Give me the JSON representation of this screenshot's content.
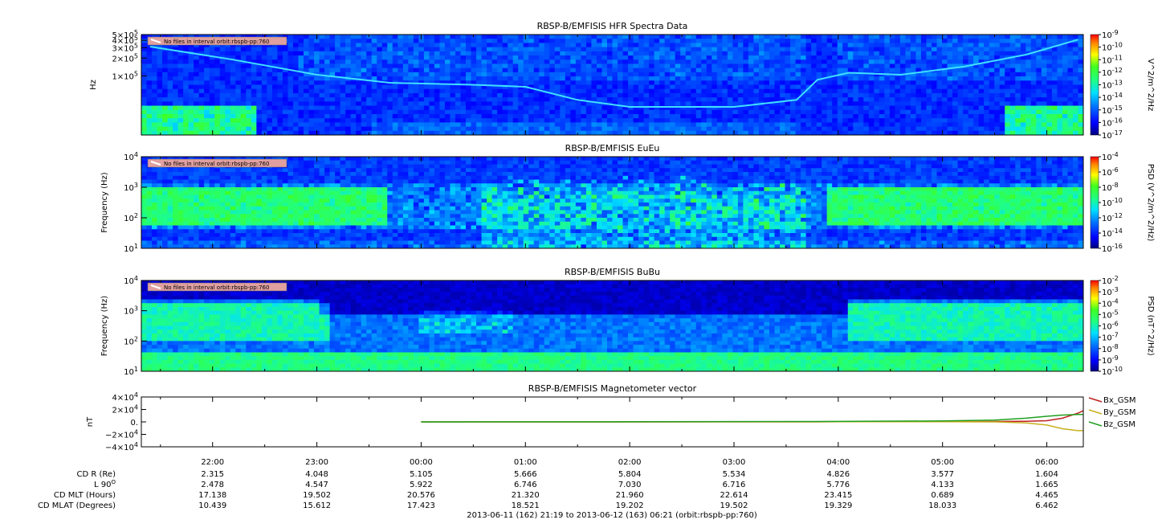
{
  "chart_data": [
    {
      "type": "heatmap",
      "title": "RBSP-B/EMFISIS  HFR Spectra Data",
      "ylabel": "Hz",
      "yscale": "log",
      "ylim": [
        10000,
        500000
      ],
      "y_ticks": [
        {
          "value": 500000,
          "m": "5",
          "e": "5"
        },
        {
          "value": 400000,
          "m": "4",
          "e": "5"
        },
        {
          "value": 300000,
          "m": "3",
          "e": "5"
        },
        {
          "value": 200000,
          "m": "2",
          "e": "5"
        },
        {
          "value": 100000,
          "m": "1",
          "e": "5"
        }
      ],
      "note": "No files in interval orbit:rbspb-pp:760",
      "colorbar": {
        "label": "V^2/m^2/Hz",
        "scale": "log",
        "range": [
          1e-17,
          1e-09
        ],
        "ticks": [
          {
            "value": 1e-09,
            "e": "-9"
          },
          {
            "value": 1e-10,
            "e": "-10"
          },
          {
            "value": 1e-11,
            "e": "-11"
          },
          {
            "value": 1e-12,
            "e": "-12"
          },
          {
            "value": 1e-13,
            "e": "-13"
          },
          {
            "value": 1e-14,
            "e": "-14"
          },
          {
            "value": 1e-15,
            "e": "-15"
          },
          {
            "value": 1e-16,
            "e": "-16"
          },
          {
            "value": 1e-17,
            "e": "-17"
          }
        ]
      }
    },
    {
      "type": "heatmap",
      "title": "RBSP-B/EMFISIS  EuEu",
      "ylabel": "Frequency (Hz)",
      "yscale": "log",
      "ylim": [
        10,
        10000
      ],
      "y_ticks": [
        {
          "value": 10000,
          "m": "10",
          "e": "4"
        },
        {
          "value": 1000,
          "m": "10",
          "e": "3"
        },
        {
          "value": 100,
          "m": "10",
          "e": "2"
        },
        {
          "value": 10,
          "m": "10",
          "e": "1"
        }
      ],
      "note": "No files in interval orbit:rbspb-pp:760",
      "colorbar": {
        "label": "PSD (V^2/m^2/Hz)",
        "scale": "log",
        "range": [
          1e-16,
          0.0001
        ],
        "ticks": [
          {
            "value": 0.0001,
            "e": "-4"
          },
          {
            "value": 1e-06,
            "e": "-6"
          },
          {
            "value": 1e-08,
            "e": "-8"
          },
          {
            "value": 1e-10,
            "e": "-10"
          },
          {
            "value": 1e-12,
            "e": "-12"
          },
          {
            "value": 1e-14,
            "e": "-14"
          },
          {
            "value": 1e-16,
            "e": "-16"
          }
        ]
      }
    },
    {
      "type": "heatmap",
      "title": "RBSP-B/EMFISIS  BuBu",
      "ylabel": "Frequency (Hz)",
      "yscale": "log",
      "ylim": [
        10,
        10000
      ],
      "y_ticks": [
        {
          "value": 10000,
          "m": "10",
          "e": "4"
        },
        {
          "value": 1000,
          "m": "10",
          "e": "3"
        },
        {
          "value": 100,
          "m": "10",
          "e": "2"
        },
        {
          "value": 10,
          "m": "10",
          "e": "1"
        }
      ],
      "note": "No files in interval orbit:rbspb-pp:760",
      "colorbar": {
        "label": "PSD (nT^2/Hz)",
        "scale": "log",
        "range": [
          1e-10,
          0.01
        ],
        "ticks": [
          {
            "value": 0.01,
            "e": "-2"
          },
          {
            "value": 0.001,
            "e": "-3"
          },
          {
            "value": 0.0001,
            "e": "-4"
          },
          {
            "value": 1e-05,
            "e": "-5"
          },
          {
            "value": 1e-06,
            "e": "-6"
          },
          {
            "value": 1e-07,
            "e": "-7"
          },
          {
            "value": 1e-08,
            "e": "-8"
          },
          {
            "value": 1e-09,
            "e": "-9"
          },
          {
            "value": 1e-10,
            "e": "-10"
          }
        ]
      }
    },
    {
      "type": "line",
      "title": "RBSP-B/EMFISIS  Magnetometer vector",
      "ylabel": "nT",
      "ylim": [
        -40000,
        40000
      ],
      "y_ticks": [
        {
          "value": 40000,
          "text": "4×10",
          "e": "4"
        },
        {
          "value": 20000,
          "text": "2×10",
          "e": "4"
        },
        {
          "value": 0,
          "text": "0.",
          "e": ""
        },
        {
          "value": -20000,
          "text": "−2×10",
          "e": "4"
        },
        {
          "value": -40000,
          "text": "−4×10",
          "e": "4"
        }
      ],
      "legend_position": "right",
      "series": [
        {
          "name": "Bx_GSM",
          "color": "#c02020",
          "t": [
            0.0,
            2.0,
            4.0,
            5.0,
            5.5,
            5.8,
            6.0,
            6.15,
            6.3,
            6.35
          ],
          "values": [
            0,
            0,
            300,
            500,
            600,
            1000,
            2000,
            6000,
            14000,
            18000
          ]
        },
        {
          "name": "By_GSM",
          "color": "#c8b020",
          "t": [
            0.0,
            2.0,
            4.0,
            5.0,
            5.5,
            5.8,
            6.0,
            6.15,
            6.3,
            6.35
          ],
          "values": [
            0,
            0,
            200,
            300,
            0,
            -1500,
            -5000,
            -11000,
            -14000,
            -14000
          ]
        },
        {
          "name": "Bz_GSM",
          "color": "#20a020",
          "t": [
            0.0,
            2.0,
            4.0,
            5.0,
            5.5,
            5.8,
            6.0,
            6.15,
            6.3,
            6.35
          ],
          "values": [
            0,
            200,
            800,
            1500,
            3000,
            6000,
            9000,
            11000,
            12000,
            12000
          ]
        }
      ]
    }
  ],
  "time_axis": {
    "range_hours": [
      -2.6833,
      6.35
    ],
    "tick_hours": [
      -2,
      -1,
      0,
      1,
      2,
      3,
      4,
      5,
      6
    ],
    "tick_labels": [
      "22:00",
      "23:00",
      "00:00",
      "01:00",
      "02:00",
      "03:00",
      "04:00",
      "05:00",
      "06:00"
    ]
  },
  "ephemeris": [
    {
      "label": "CD R (Re)",
      "values": [
        "2.315",
        "4.048",
        "5.105",
        "5.666",
        "5.804",
        "5.534",
        "4.826",
        "3.577",
        "1.604"
      ]
    },
    {
      "label": "L 90",
      "label_sup": "O",
      "values": [
        "2.478",
        "4.547",
        "5.922",
        "6.746",
        "7.030",
        "6.716",
        "5.776",
        "4.133",
        "1.665"
      ]
    },
    {
      "label": "CD MLT (Hours)",
      "values": [
        "17.138",
        "19.502",
        "20.576",
        "21.320",
        "21.960",
        "22.614",
        "23.415",
        "0.689",
        "4.465"
      ]
    },
    {
      "label": "CD MLAT (Degrees)",
      "values": [
        "10.439",
        "15.612",
        "17.423",
        "18.521",
        "19.202",
        "19.502",
        "19.329",
        "18.033",
        "6.462"
      ]
    }
  ],
  "footer": "2013-06-11 (162) 21:19 to 2013-06-12 (163) 06:21 (orbit:rbspb-pp:760)"
}
